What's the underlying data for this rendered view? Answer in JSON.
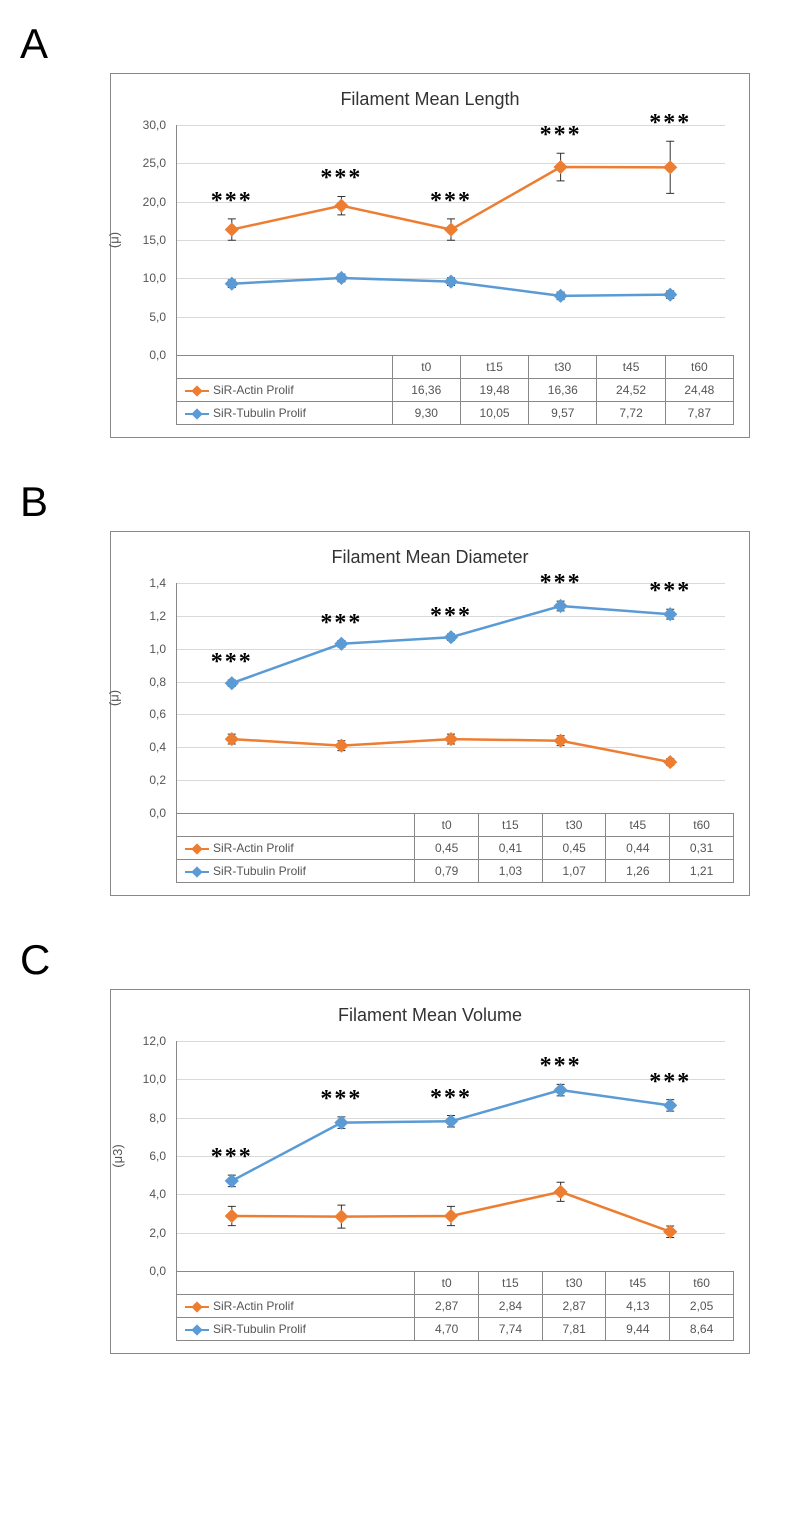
{
  "panels": [
    {
      "label": "A",
      "title": "Filament Mean Length",
      "ylabel": "(μ)",
      "ymin": 0,
      "ymax": 30,
      "ystep": 5,
      "decimals": 1,
      "categories": [
        "t0",
        "t15",
        "t30",
        "t45",
        "t60"
      ],
      "series": [
        {
          "name": "SiR-Actin Prolif",
          "color": "#ed7d31",
          "values": [
            16.36,
            19.48,
            16.36,
            24.52,
            24.48
          ],
          "errors": [
            1.4,
            1.2,
            1.4,
            1.8,
            3.4
          ],
          "sig_above": true,
          "sigs": [
            "***",
            "***",
            "***",
            "***",
            "***"
          ]
        },
        {
          "name": "SiR-Tubulin Prolif",
          "color": "#5b9bd5",
          "values": [
            9.3,
            10.05,
            9.57,
            7.72,
            7.87
          ],
          "errors": [
            0.5,
            0.5,
            0.5,
            0.5,
            0.5
          ],
          "sig_above": false,
          "sigs": []
        }
      ]
    },
    {
      "label": "B",
      "title": "Filament Mean Diameter",
      "ylabel": "(μ)",
      "ymin": 0,
      "ymax": 1.4,
      "ystep": 0.2,
      "decimals": 1,
      "categories": [
        "t0",
        "t15",
        "t30",
        "t45",
        "t60"
      ],
      "series": [
        {
          "name": "SiR-Actin Prolif",
          "color": "#ed7d31",
          "values": [
            0.45,
            0.41,
            0.45,
            0.44,
            0.31
          ],
          "errors": [
            0.03,
            0.03,
            0.03,
            0.03,
            0.02
          ],
          "sig_above": false,
          "sigs": []
        },
        {
          "name": "SiR-Tubulin Prolif",
          "color": "#5b9bd5",
          "values": [
            0.79,
            1.03,
            1.07,
            1.26,
            1.21
          ],
          "errors": [
            0.02,
            0.02,
            0.02,
            0.03,
            0.03
          ],
          "sig_above": true,
          "sigs": [
            "***",
            "***",
            "***",
            "***",
            "***"
          ]
        }
      ]
    },
    {
      "label": "C",
      "title": "Filament Mean Volume",
      "ylabel": "(μ3)",
      "ymin": 0,
      "ymax": 12,
      "ystep": 2,
      "decimals": 1,
      "categories": [
        "t0",
        "t15",
        "t30",
        "t45",
        "t60"
      ],
      "series": [
        {
          "name": "SiR-Actin Prolif",
          "color": "#ed7d31",
          "values": [
            2.87,
            2.84,
            2.87,
            4.13,
            2.05
          ],
          "errors": [
            0.5,
            0.6,
            0.5,
            0.5,
            0.3
          ],
          "sig_above": false,
          "sigs": []
        },
        {
          "name": "SiR-Tubulin Prolif",
          "color": "#5b9bd5",
          "values": [
            4.7,
            7.74,
            7.81,
            9.44,
            8.64
          ],
          "errors": [
            0.3,
            0.3,
            0.3,
            0.3,
            0.3
          ],
          "sig_above": true,
          "sigs": [
            "***",
            "***",
            "***",
            "***",
            "***"
          ]
        }
      ]
    }
  ],
  "marker_size": 5,
  "line_width": 2.5,
  "title_fontsize": 18,
  "label_fontsize": 12,
  "panel_label_fontsize": 42,
  "sig_fontsize": 24,
  "background_color": "#ffffff",
  "grid_color": "#d9d9d9",
  "axis_color": "#888888"
}
